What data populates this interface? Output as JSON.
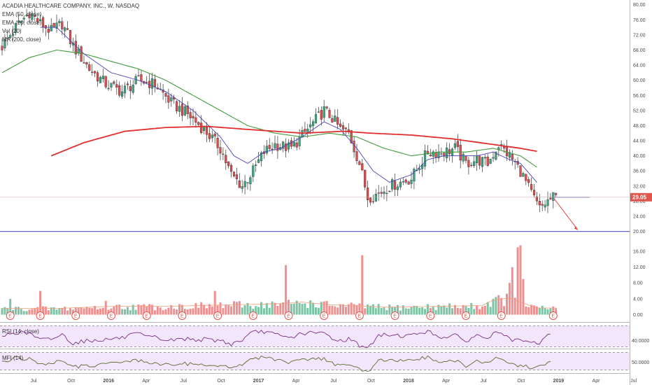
{
  "chart_data": {
    "type": "candlestick",
    "title": "ACADIA HEALTHCARE COMPANY, INC., W, NASDAQ",
    "indicators": [
      "EMA (50, close)",
      "EMA (20, close)",
      "Vol (20)",
      "MA (200, close)"
    ],
    "rsi_label": "RSI (14, close)",
    "mfi_label": "MFI (14)",
    "price_axis": {
      "ticks": [
        "80.00",
        "76.00",
        "72.00",
        "68.00",
        "64.00",
        "60.00",
        "56.00",
        "52.00",
        "48.00",
        "44.00",
        "40.00",
        "36.00",
        "32.00",
        "28.00",
        "24.00",
        "20.00"
      ],
      "values": [
        80,
        76,
        72,
        68,
        64,
        60,
        56,
        52,
        48,
        44,
        40,
        36,
        32,
        28,
        24,
        20
      ],
      "range": [
        19,
        80.5
      ]
    },
    "volume_axis": {
      "ticks": [
        "16.00",
        "12.00",
        "8.00",
        "4.00",
        "0.00"
      ],
      "values": [
        16,
        12,
        8,
        4,
        0
      ],
      "range": [
        -1.5,
        19
      ]
    },
    "rsi_axis": {
      "ticks": [
        "40.0000"
      ],
      "values": [
        40
      ]
    },
    "mfi_axis": {
      "ticks": [
        "50.0000"
      ],
      "values": [
        50
      ]
    },
    "time_axis": {
      "labels": [
        "Jul",
        "Oct",
        "2016",
        "Apr",
        "Jul",
        "Oct",
        "2017",
        "Apr",
        "Jul",
        "Oct",
        "2018",
        "Apr",
        "Jul",
        "Oct",
        "2019",
        "Apr",
        "Jul"
      ],
      "bold": [
        false,
        false,
        true,
        false,
        false,
        false,
        true,
        false,
        false,
        false,
        true,
        false,
        false,
        false,
        true,
        false,
        false
      ]
    },
    "last_price": {
      "value": 29.05,
      "label": "29.05",
      "color": "#e0554e"
    },
    "support_level": {
      "value": 20,
      "color": "#6264c8"
    },
    "projection_arrow": {
      "from": 29,
      "to": 20,
      "color": "#e34a43"
    },
    "earnings_marker": "E",
    "anchors": [
      [
        0,
        69
      ],
      [
        5,
        74
      ],
      [
        10,
        78
      ],
      [
        14,
        75
      ],
      [
        18,
        73
      ],
      [
        22,
        75
      ],
      [
        26,
        69
      ],
      [
        32,
        63
      ],
      [
        38,
        59
      ],
      [
        44,
        57
      ],
      [
        50,
        60
      ],
      [
        56,
        59
      ],
      [
        62,
        54
      ],
      [
        68,
        51
      ],
      [
        74,
        47
      ],
      [
        80,
        42
      ],
      [
        84,
        35
      ],
      [
        88,
        32
      ],
      [
        92,
        36
      ],
      [
        96,
        41
      ],
      [
        100,
        43
      ],
      [
        106,
        42
      ],
      [
        112,
        47
      ],
      [
        118,
        52
      ],
      [
        121,
        50
      ],
      [
        124,
        47
      ],
      [
        127,
        46
      ],
      [
        131,
        38
      ],
      [
        134,
        29
      ],
      [
        138,
        30
      ],
      [
        142,
        32
      ],
      [
        150,
        34
      ],
      [
        156,
        41
      ],
      [
        162,
        41
      ],
      [
        166,
        42
      ],
      [
        170,
        38
      ],
      [
        174,
        39
      ],
      [
        178,
        38
      ],
      [
        182,
        43
      ],
      [
        186,
        40
      ],
      [
        190,
        36
      ],
      [
        192,
        33
      ],
      [
        194,
        30
      ],
      [
        197,
        26
      ],
      [
        200,
        28
      ],
      [
        202,
        29
      ]
    ],
    "ema50_anchors": [
      [
        0,
        62
      ],
      [
        10,
        66
      ],
      [
        20,
        68
      ],
      [
        30,
        67
      ],
      [
        40,
        65
      ],
      [
        50,
        63
      ],
      [
        60,
        60
      ],
      [
        70,
        56
      ],
      [
        80,
        52
      ],
      [
        90,
        48
      ],
      [
        100,
        46
      ],
      [
        110,
        45
      ],
      [
        120,
        46
      ],
      [
        130,
        45
      ],
      [
        140,
        42
      ],
      [
        150,
        40
      ],
      [
        160,
        41
      ],
      [
        170,
        41
      ],
      [
        180,
        42
      ],
      [
        185,
        41
      ],
      [
        190,
        40
      ],
      [
        196,
        37
      ]
    ],
    "ema20_anchors": [
      [
        14,
        74
      ],
      [
        20,
        74
      ],
      [
        30,
        67
      ],
      [
        40,
        62
      ],
      [
        50,
        60
      ],
      [
        60,
        57
      ],
      [
        70,
        52
      ],
      [
        80,
        45
      ],
      [
        85,
        40
      ],
      [
        90,
        38
      ],
      [
        96,
        41
      ],
      [
        102,
        42
      ],
      [
        110,
        45
      ],
      [
        118,
        49
      ],
      [
        124,
        47
      ],
      [
        130,
        42
      ],
      [
        136,
        36
      ],
      [
        142,
        33
      ],
      [
        150,
        35
      ],
      [
        156,
        39
      ],
      [
        162,
        40
      ],
      [
        168,
        40
      ],
      [
        174,
        40
      ],
      [
        180,
        41
      ],
      [
        186,
        39
      ],
      [
        190,
        38
      ],
      [
        196,
        33
      ]
    ],
    "ma200_anchors": [
      [
        18,
        40
      ],
      [
        30,
        43.5
      ],
      [
        45,
        46.5
      ],
      [
        60,
        47.5
      ],
      [
        75,
        47.8
      ],
      [
        90,
        47
      ],
      [
        110,
        46
      ],
      [
        125,
        46.5
      ],
      [
        135,
        46
      ],
      [
        150,
        45.5
      ],
      [
        165,
        44.5
      ],
      [
        180,
        43
      ],
      [
        190,
        42
      ],
      [
        196,
        41.2
      ]
    ],
    "volume_anchors": [
      [
        0,
        1.5
      ],
      [
        20,
        1.5
      ],
      [
        40,
        2
      ],
      [
        60,
        2
      ],
      [
        80,
        2.3
      ],
      [
        100,
        2.6
      ],
      [
        110,
        3
      ],
      [
        120,
        2.4
      ],
      [
        140,
        1.8
      ],
      [
        160,
        2
      ],
      [
        176,
        2.2
      ],
      [
        180,
        3.5
      ],
      [
        186,
        4
      ],
      [
        190,
        3
      ],
      [
        196,
        1.6
      ]
    ],
    "volume_spikes": [
      [
        3,
        4
      ],
      [
        14,
        6
      ],
      [
        38,
        3.5
      ],
      [
        78,
        6
      ],
      [
        104,
        12.5
      ],
      [
        132,
        15
      ],
      [
        186,
        8
      ],
      [
        187,
        12
      ],
      [
        189,
        17
      ],
      [
        190,
        17.5
      ],
      [
        191,
        9
      ]
    ],
    "earnings_bars": [
      3,
      14,
      27,
      40,
      53,
      66,
      79,
      92,
      105,
      118,
      131,
      144,
      157,
      170,
      183,
      202
    ]
  }
}
